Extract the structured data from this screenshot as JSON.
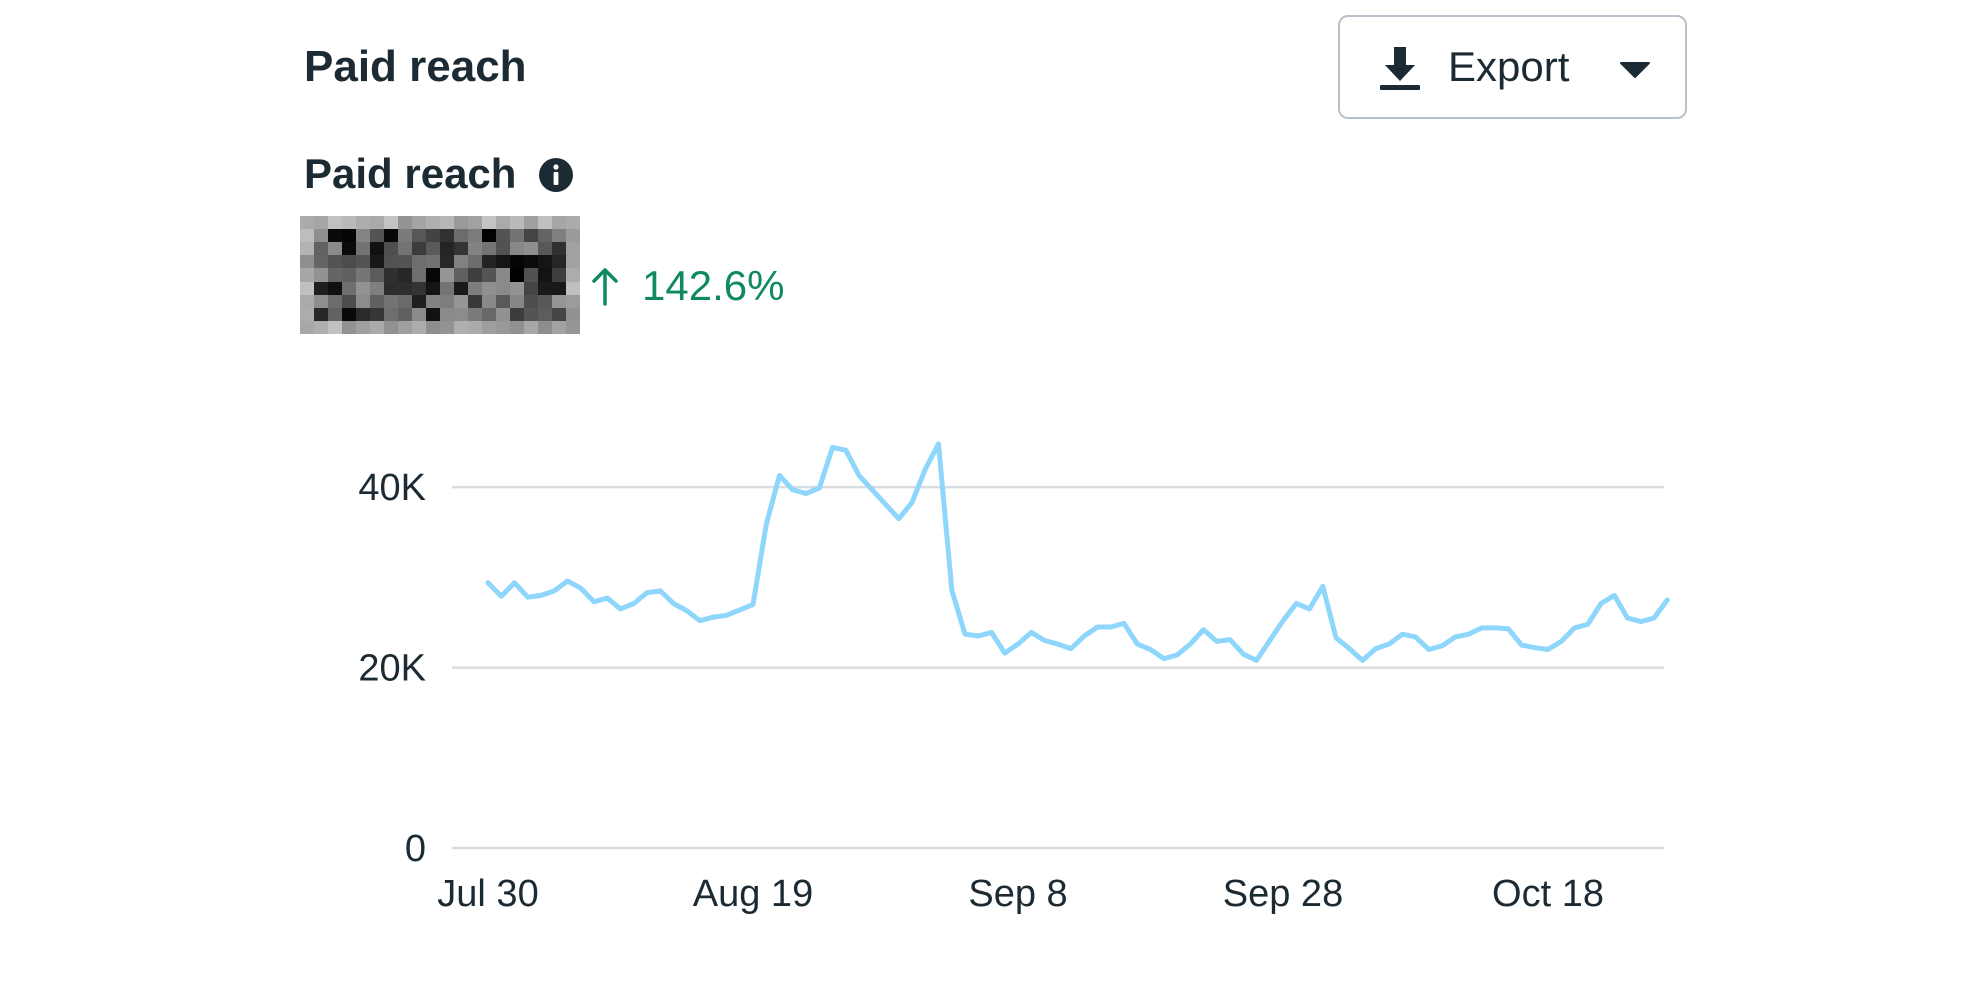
{
  "header": {
    "title": "Paid reach",
    "export_label": "Export"
  },
  "metric": {
    "label": "Paid reach",
    "change": "142.6%",
    "change_color": "#0f8a5f"
  },
  "icons": {
    "export": "download-icon",
    "export_menu": "caret-down-icon",
    "info": "info-icon",
    "change": "arrow-up-icon"
  },
  "chart_data": {
    "type": "line",
    "title": "",
    "xlabel": "",
    "ylabel": "",
    "ylim": [
      0,
      48000
    ],
    "yticks": [
      0,
      20000,
      40000
    ],
    "ytick_labels": [
      "0",
      "20K",
      "40K"
    ],
    "x_tick_labels": [
      "Jul 30",
      "Aug 19",
      "Sep 8",
      "Sep 28",
      "Oct 18"
    ],
    "x_tick_indices": [
      0,
      20,
      40,
      60,
      80
    ],
    "x_start": "Jul 30",
    "x_step_days": 1,
    "grid": true,
    "line_color": "#8ed6fb",
    "series": [
      {
        "values": [
          29400,
          27900,
          29400,
          27800,
          28000,
          28500,
          29600,
          28800,
          27300,
          27700,
          26500,
          27100,
          28300,
          28500,
          27100,
          26300,
          25200,
          25600,
          25800,
          26400,
          27000,
          35900,
          41300,
          39700,
          39300,
          39900,
          44400,
          44100,
          41300,
          39700,
          38100,
          36500,
          38300,
          42000,
          44800,
          28600,
          23700,
          23500,
          23900,
          21600,
          22600,
          23900,
          23000,
          22600,
          22100,
          23500,
          24500,
          24500,
          24900,
          22600,
          22000,
          21000,
          21400,
          22600,
          24200,
          22900,
          23100,
          21500,
          20800,
          23000,
          25200,
          27100,
          26500,
          29000,
          23300,
          22100,
          20800,
          22100,
          22600,
          23700,
          23400,
          22000,
          22400,
          23400,
          23700,
          24400,
          24400,
          24300,
          22500,
          22200,
          22000,
          22900,
          24400,
          24800,
          27100,
          28000,
          25500,
          25100,
          25500,
          27500
        ]
      }
    ]
  }
}
